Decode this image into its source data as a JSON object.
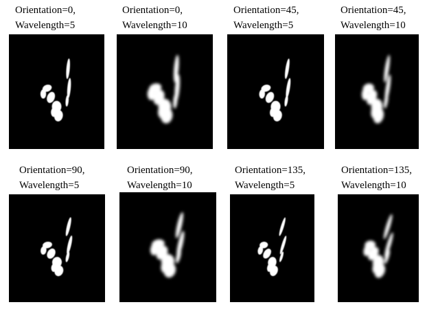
{
  "panels": [
    {
      "lines": [
        "Orientation=0,",
        "Wavelength=5"
      ]
    },
    {
      "lines": [
        "Orientation=0,",
        "Wavelength=10"
      ]
    },
    {
      "lines": [
        "Orientation=45,",
        "Wavelength=5"
      ]
    },
    {
      "lines": [
        "Orientation=45,",
        "Wavelength=10"
      ]
    },
    {
      "lines": [
        "Orientation=90,",
        "Wavelength=5"
      ]
    },
    {
      "lines": [
        "Orientation=90,",
        "Wavelength=10"
      ]
    },
    {
      "lines": [
        "Orientation=135,",
        "Wavelength=5"
      ]
    },
    {
      "lines": [
        "Orientation=135,",
        "Wavelength=10"
      ]
    }
  ]
}
